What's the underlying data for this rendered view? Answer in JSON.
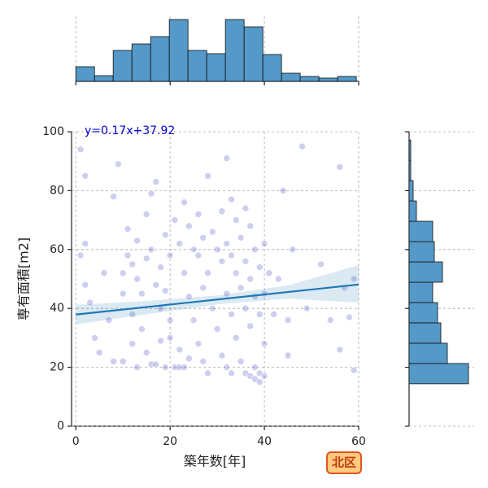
{
  "chart_data": {
    "type": "scatter",
    "xlabel": "築年数[年]",
    "ylabel": "専有面積[m2]",
    "annotation": "y=0.17x+37.92",
    "annotation_color": "#0000cc",
    "point_color": "#3a3ac0",
    "xlim": [
      -0.9,
      60
    ],
    "ylim": [
      0,
      100
    ],
    "xticks": [
      0,
      20,
      40,
      60
    ],
    "yticks": [
      0,
      20,
      40,
      60,
      80,
      100
    ],
    "grid": true,
    "x": [
      1,
      2,
      1,
      2,
      2,
      3,
      4,
      5,
      7,
      8,
      9,
      10,
      10,
      10,
      11,
      11,
      12,
      12,
      12,
      13,
      13,
      13,
      14,
      14,
      15,
      15,
      15,
      16,
      16,
      16,
      17,
      17,
      17,
      18,
      18,
      18,
      19,
      19,
      19,
      20,
      20,
      20,
      21,
      21,
      22,
      22,
      22,
      23,
      23,
      23,
      24,
      24,
      24,
      25,
      25,
      26,
      26,
      26,
      27,
      27,
      27,
      28,
      28,
      28,
      29,
      29,
      30,
      30,
      31,
      31,
      31,
      32,
      32,
      32,
      32,
      33,
      33,
      33,
      33,
      34,
      34,
      34,
      35,
      35,
      35,
      36,
      36,
      36,
      36,
      37,
      37,
      37,
      37,
      38,
      38,
      38,
      38,
      39,
      39,
      39,
      39,
      40,
      40,
      40,
      40,
      41,
      42,
      43,
      44,
      45,
      46,
      48,
      49,
      52,
      54,
      56,
      57,
      58,
      59,
      59,
      56,
      8,
      6,
      45
    ],
    "values": [
      94,
      85,
      58,
      62,
      48,
      42,
      30,
      25,
      36,
      78,
      89,
      52,
      45,
      22,
      67,
      58,
      55,
      38,
      28,
      63,
      50,
      20,
      45,
      33,
      72,
      57,
      25,
      79,
      60,
      21,
      83,
      48,
      21,
      54,
      40,
      29,
      65,
      46,
      20,
      58,
      36,
      30,
      70,
      20,
      62,
      26,
      20,
      76,
      52,
      20,
      68,
      44,
      23,
      60,
      36,
      72,
      58,
      28,
      64,
      47,
      22,
      85,
      52,
      18,
      66,
      40,
      60,
      33,
      73,
      56,
      24,
      91,
      62,
      45,
      20,
      77,
      58,
      38,
      18,
      70,
      52,
      30,
      64,
      47,
      22,
      74,
      56,
      40,
      18,
      68,
      50,
      34,
      17,
      60,
      44,
      20,
      16,
      54,
      38,
      18,
      15,
      62,
      45,
      28,
      17,
      52,
      38,
      50,
      80,
      36,
      60,
      95,
      40,
      55,
      36,
      88,
      47,
      37,
      19,
      50,
      26,
      22,
      52,
      24
    ],
    "regression": {
      "color": "#1f77b4",
      "x": [
        0,
        60
      ],
      "y": [
        37.92,
        48.12
      ]
    },
    "band": {
      "x": [
        0,
        15,
        30,
        45,
        60
      ],
      "upper": [
        41.2,
        42.5,
        44.4,
        47.8,
        54.7
      ],
      "lower": [
        34.6,
        38,
        41.4,
        43.3,
        42
      ]
    },
    "hist_color": "#5499c7",
    "x_hist": {
      "bins": [
        0,
        3.97,
        7.93,
        11.9,
        15.87,
        19.83,
        23.8,
        27.77,
        31.73,
        35.7,
        39.67,
        43.63,
        47.6,
        51.57,
        55.53,
        59.5
      ],
      "counts": [
        18,
        7,
        38,
        46,
        55,
        76,
        38,
        34,
        76,
        67,
        33,
        10,
        6,
        4,
        6
      ],
      "lim": [
        0,
        80
      ]
    },
    "y_hist": {
      "bins": [
        14.4,
        21.3,
        28.2,
        35.1,
        42,
        48.9,
        55.8,
        62.7,
        69.6,
        76.5,
        83.4,
        90.3,
        97.2
      ],
      "counts": [
        73,
        47,
        39,
        35,
        29,
        41,
        31,
        29,
        9,
        5,
        2,
        2
      ],
      "lim": [
        0,
        80
      ]
    }
  },
  "badge": "北区"
}
